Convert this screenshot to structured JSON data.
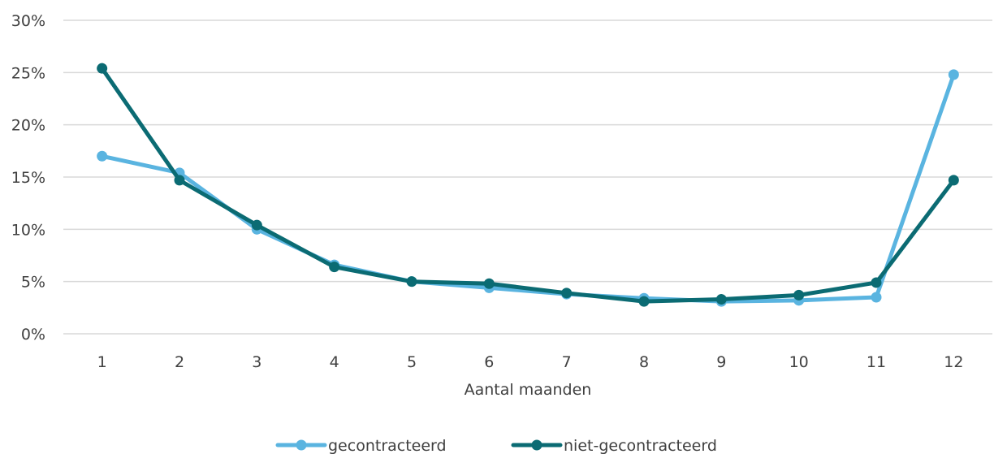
{
  "chart_data": {
    "type": "line",
    "title": "",
    "xlabel": "Aantal maanden",
    "ylabel": "",
    "categories": [
      "1",
      "2",
      "3",
      "4",
      "5",
      "6",
      "7",
      "8",
      "9",
      "10",
      "11",
      "12"
    ],
    "y_ticks": [
      "0%",
      "5%",
      "10%",
      "15%",
      "20%",
      "25%",
      "30%"
    ],
    "ylim": [
      0,
      30
    ],
    "grid": "horizontal",
    "legend_position": "bottom",
    "series": [
      {
        "name": "gecontracteerd",
        "color": "#5ab4e0",
        "values": [
          17.0,
          15.4,
          10.0,
          6.6,
          5.0,
          4.4,
          3.8,
          3.4,
          3.1,
          3.2,
          3.5,
          24.8
        ]
      },
      {
        "name": "niet-gecontracteerd",
        "color": "#0b6b73",
        "values": [
          25.4,
          14.7,
          10.4,
          6.4,
          5.0,
          4.8,
          3.9,
          3.1,
          3.3,
          3.7,
          4.9,
          14.7
        ]
      }
    ]
  }
}
